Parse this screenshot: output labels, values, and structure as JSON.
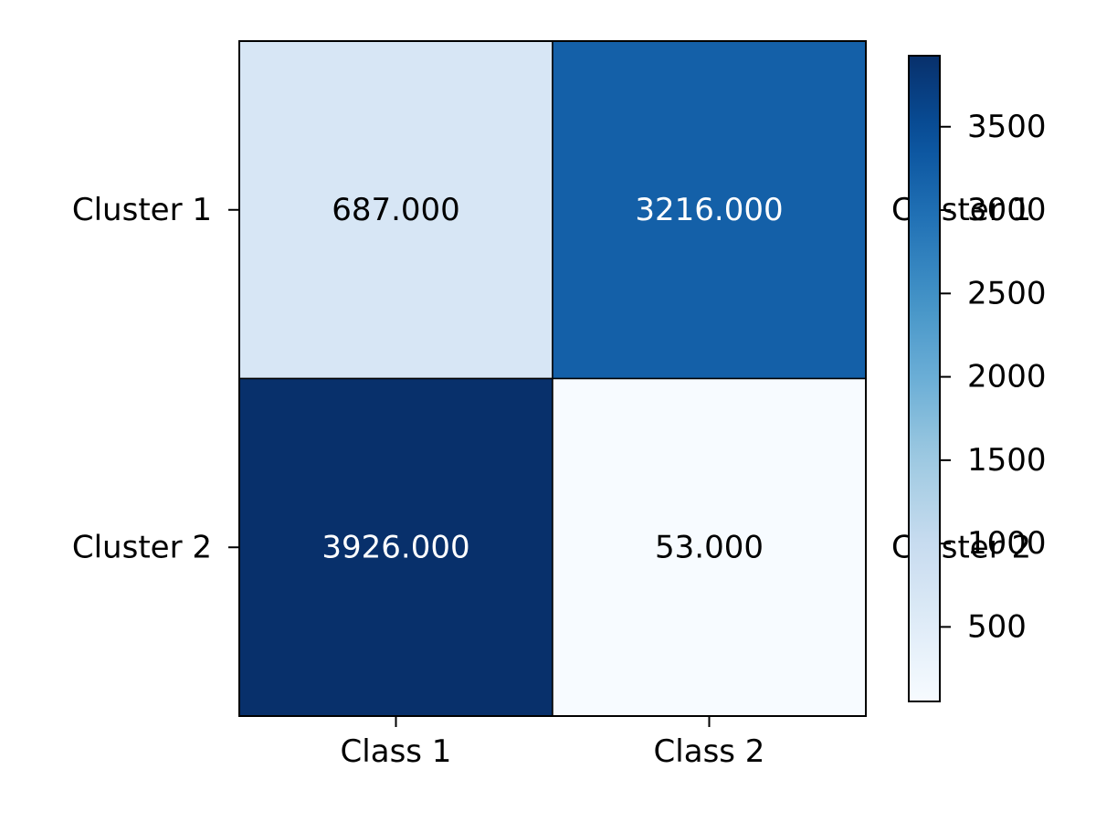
{
  "chart_data": {
    "type": "heatmap",
    "title": "",
    "xlabel": "",
    "ylabel": "",
    "x_categories": [
      "Class 1",
      "Class 2"
    ],
    "y_categories": [
      "Cluster 1",
      "Cluster 2"
    ],
    "right_y_categories": [
      "Cluster 1",
      "Cluster 2"
    ],
    "values": [
      [
        687,
        3216
      ],
      [
        3926,
        53
      ]
    ],
    "cell_labels": [
      [
        "687.000",
        "3216.000"
      ],
      [
        "3926.000",
        "53.000"
      ]
    ],
    "colormap": "Blues",
    "color_range": [
      53,
      3926
    ],
    "colorbar_ticks": [
      500,
      1000,
      1500,
      2000,
      2500,
      3000,
      3500
    ],
    "colorbar_tick_labels": [
      "500",
      "1000",
      "1500",
      "2000",
      "2500",
      "3000",
      "3500"
    ],
    "colors": {
      "low": "#f7fbff",
      "high": "#08306b",
      "text_dark": "#000000",
      "text_light": "#ffffff"
    }
  }
}
